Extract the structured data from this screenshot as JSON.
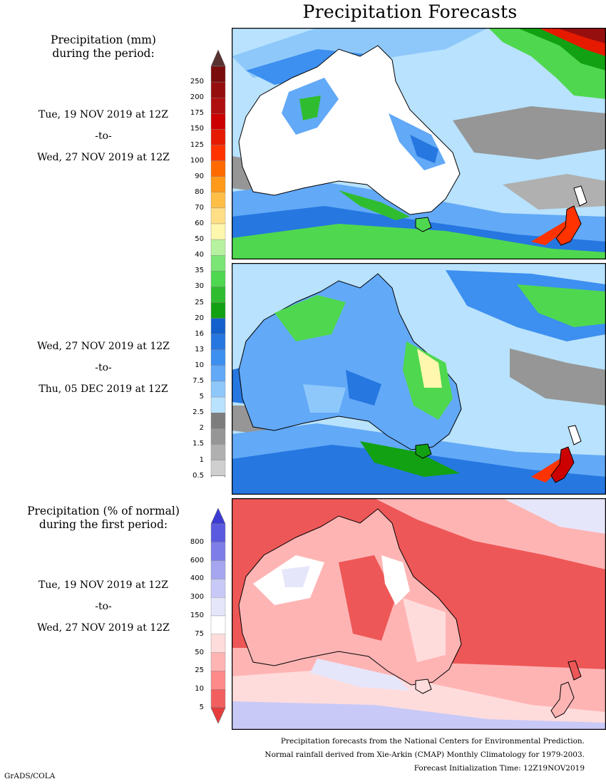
{
  "title": "Precipitation Forecasts",
  "precip_panel": {
    "heading": [
      "Precipitation (mm)",
      "during the period:"
    ],
    "period1": {
      "start": "Tue, 19 NOV 2019 at 12Z",
      "sep": "-to-",
      "end": "Wed, 27 NOV 2019 at 12Z"
    },
    "period2": {
      "start": "Wed, 27 NOV 2019 at 12Z",
      "sep": "-to-",
      "end": "Thu, 05 DEC 2019 at 12Z"
    },
    "colorbar": {
      "levels": [
        "250",
        "200",
        "175",
        "150",
        "125",
        "100",
        "90",
        "80",
        "70",
        "60",
        "50",
        "40",
        "35",
        "30",
        "25",
        "20",
        "16",
        "13",
        "10",
        "7.5",
        "5",
        "2.5",
        "2",
        "1.5",
        "1",
        "0.5"
      ],
      "colors": [
        "#7a0c0c",
        "#960f0f",
        "#b00f0f",
        "#cc0000",
        "#e61a00",
        "#ff3300",
        "#ff6a00",
        "#ff9a1a",
        "#ffbf47",
        "#ffdf85",
        "#fff7ad",
        "#b7f2a0",
        "#7be675",
        "#4fd84f",
        "#2fbd2f",
        "#12a112",
        "#1460cc",
        "#2677e0",
        "#3d8ff0",
        "#62a9f7",
        "#8ec8fb",
        "#b8e2fd",
        "#7d7d7d",
        "#969696",
        "#b0b0b0",
        "#cfcfcf"
      ],
      "top_arrow": "#5a3232",
      "bottom_arrow": "#ffffff"
    }
  },
  "normal_panel": {
    "heading": [
      "Precipitation (% of normal)",
      "during the first period:"
    ],
    "period": {
      "start": "Tue, 19 NOV 2019 at 12Z",
      "sep": "-to-",
      "end": "Wed, 27 NOV 2019 at 12Z"
    },
    "colorbar": {
      "levels": [
        "800",
        "600",
        "400",
        "300",
        "150",
        "75",
        "50",
        "25",
        "10",
        "5"
      ],
      "colors": [
        "#5a5ae0",
        "#7e7ee8",
        "#a5a5f0",
        "#c9c9f7",
        "#e6e6fb",
        "#ffffff",
        "#ffdcdc",
        "#ffb4b4",
        "#ff8a8a",
        "#f25f5f"
      ],
      "top_arrow": "#3c3cd2",
      "bottom_arrow": "#e63c3c"
    }
  },
  "maps": {
    "land_color": "#ffffff",
    "sea_low": "#b8e2fd",
    "normal_dry": "#ee5757"
  },
  "footer": [
    "Precipitation forecasts from the National Centers for Environmental Prediction.",
    "Normal rainfall derived from Xie-Arkin (CMAP) Monthly Climatology for 1979-2003.",
    "Forecast Initialization Time: 12Z19NOV2019"
  ],
  "credit": "GrADS/COLA"
}
